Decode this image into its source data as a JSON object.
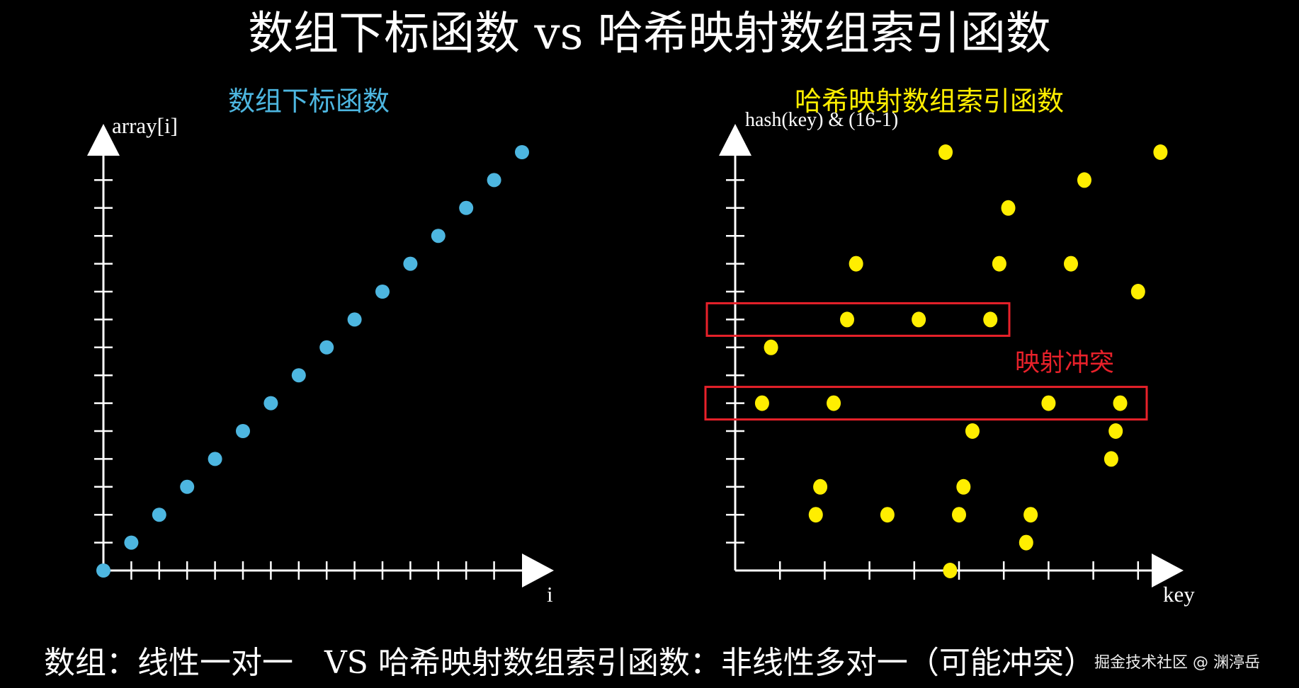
{
  "title": "数组下标函数 vs 哈希映射数组索引函数",
  "left_chart": {
    "subtitle": "数组下标函数",
    "ylabel": "array[i]",
    "xlabel": "i",
    "color": "#4db6e0",
    "points": [
      [
        0,
        0
      ],
      [
        1,
        1
      ],
      [
        2,
        2
      ],
      [
        3,
        3
      ],
      [
        4,
        4
      ],
      [
        5,
        5
      ],
      [
        6,
        6
      ],
      [
        7,
        7
      ],
      [
        8,
        8
      ],
      [
        9,
        9
      ],
      [
        10,
        10
      ],
      [
        11,
        11
      ],
      [
        12,
        12
      ],
      [
        13,
        13
      ],
      [
        14,
        14
      ],
      [
        15,
        15
      ]
    ]
  },
  "right_chart": {
    "subtitle": "哈希映射数组索引函数",
    "ylabel": "hash(key) & (16-1)",
    "xlabel": "key",
    "color": "#ffee00",
    "points": [
      [
        4.7,
        15
      ],
      [
        9.5,
        15
      ],
      [
        7.8,
        14
      ],
      [
        6.1,
        13
      ],
      [
        2.7,
        11
      ],
      [
        5.9,
        11
      ],
      [
        7.5,
        11
      ],
      [
        9.0,
        10
      ],
      [
        2.5,
        9
      ],
      [
        4.1,
        9
      ],
      [
        5.7,
        9
      ],
      [
        0.8,
        8
      ],
      [
        0.6,
        6
      ],
      [
        2.2,
        6
      ],
      [
        7.0,
        6
      ],
      [
        8.6,
        6
      ],
      [
        5.3,
        5
      ],
      [
        8.5,
        5
      ],
      [
        8.4,
        4
      ],
      [
        1.9,
        3
      ],
      [
        5.1,
        3
      ],
      [
        1.8,
        2
      ],
      [
        3.4,
        2
      ],
      [
        5.0,
        2
      ],
      [
        6.6,
        2
      ],
      [
        6.5,
        1
      ],
      [
        4.8,
        0
      ]
    ],
    "collision_rows": [
      9,
      6
    ],
    "collision_label": "映射冲突",
    "collision_color": "#e8212a"
  },
  "bottom_text": "数组：线性一对一　VS 哈希映射数组索引函数：非线性多对一（可能冲突）",
  "watermark": "掘金技术社区 @ 渊渟岳"
}
